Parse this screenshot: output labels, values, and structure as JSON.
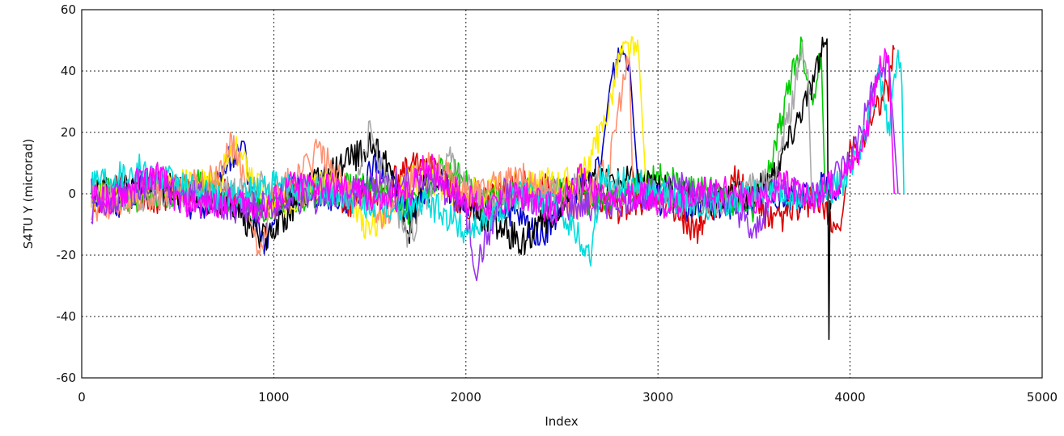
{
  "chart_data": {
    "type": "line",
    "title": "",
    "xlabel": "Index",
    "ylabel": "S4TU Y (microrad)",
    "xlim": [
      0,
      5000
    ],
    "ylim": [
      -60,
      60
    ],
    "x_ticks": [
      0,
      1000,
      2000,
      3000,
      4000,
      5000
    ],
    "x_tick_labels": [
      "0",
      "1000",
      "2000",
      "3000",
      "4000",
      "5000"
    ],
    "y_ticks": [
      -60,
      -40,
      -20,
      0,
      20,
      40,
      60
    ],
    "y_tick_labels": [
      "-60",
      "-40",
      "-20",
      "0",
      "20",
      "40",
      "60"
    ],
    "grid": true,
    "legend": "none",
    "series": [
      {
        "color": "#0000cc",
        "x": [
          50,
          200,
          350,
          500,
          650,
          750,
          850,
          900,
          950,
          1100,
          1250,
          1400,
          1550,
          1700,
          1850,
          2000,
          2200,
          2400,
          2550,
          2700,
          2750,
          2800,
          2850,
          2900,
          3000,
          3200,
          3400,
          3600,
          3750,
          3850,
          3950
        ],
        "y": [
          0,
          -3,
          4,
          -2,
          -5,
          10,
          13,
          -8,
          -16,
          3,
          0,
          -2,
          10,
          -6,
          5,
          -3,
          -5,
          -14,
          0,
          8,
          35,
          47,
          44,
          0,
          -2,
          -5,
          -3,
          0,
          -2,
          2,
          0
        ]
      },
      {
        "color": "#dd0000",
        "x": [
          50,
          200,
          400,
          600,
          800,
          950,
          1200,
          1400,
          1600,
          1800,
          2000,
          2300,
          2600,
          2800,
          3000,
          3200,
          3400,
          3600,
          3800,
          3950,
          4000,
          4050,
          4100,
          4200,
          4230
        ],
        "y": [
          -3,
          2,
          -2,
          3,
          -1,
          -4,
          2,
          -3,
          3,
          12,
          -5,
          3,
          0,
          -5,
          0,
          -12,
          5,
          -10,
          -2,
          -12,
          14,
          15,
          25,
          35,
          47
        ]
      },
      {
        "color": "#00cc00",
        "x": [
          50,
          300,
          600,
          900,
          1200,
          1500,
          1700,
          1900,
          2100,
          2400,
          2700,
          3000,
          3300,
          3500,
          3600,
          3700,
          3750,
          3800,
          3850,
          3870
        ],
        "y": [
          2,
          -2,
          3,
          -5,
          0,
          3,
          -5,
          10,
          -3,
          2,
          -3,
          5,
          0,
          -5,
          12,
          40,
          48,
          30,
          45,
          0
        ]
      },
      {
        "color": "#000000",
        "x": [
          50,
          400,
          800,
          950,
          1200,
          1500,
          1600,
          1700,
          1800,
          2000,
          2300,
          2600,
          2900,
          3200,
          3500,
          3600,
          3700,
          3750,
          3800,
          3850,
          3880,
          3890,
          3895,
          3900
        ],
        "y": [
          0,
          3,
          -5,
          -15,
          3,
          15,
          10,
          -14,
          8,
          -4,
          -16,
          3,
          5,
          -3,
          0,
          6,
          20,
          28,
          35,
          45,
          50,
          -47,
          0,
          -3
        ]
      },
      {
        "color": "#ffee00",
        "x": [
          50,
          400,
          700,
          800,
          1000,
          1300,
          1500,
          1700,
          2000,
          2300,
          2600,
          2700,
          2750,
          2800,
          2850,
          2900,
          2940
        ],
        "y": [
          -2,
          3,
          3,
          15,
          -5,
          6,
          -12,
          5,
          0,
          3,
          5,
          20,
          30,
          45,
          48,
          45,
          0
        ]
      },
      {
        "color": "#aaaaaa",
        "x": [
          50,
          500,
          1000,
          1400,
          1500,
          1550,
          1700,
          1900,
          2100,
          2500,
          2900,
          3300,
          3600,
          3700,
          3750,
          3780,
          3800
        ],
        "y": [
          0,
          -2,
          3,
          0,
          20,
          10,
          -15,
          12,
          -5,
          3,
          0,
          -4,
          5,
          30,
          48,
          40,
          0
        ]
      },
      {
        "color": "#ff9070",
        "x": [
          50,
          400,
          700,
          780,
          850,
          920,
          1000,
          1200,
          1220,
          1400,
          1600,
          1800,
          2000,
          2300,
          2600,
          2750,
          2800,
          2850,
          2870
        ],
        "y": [
          -5,
          0,
          5,
          17,
          5,
          -22,
          0,
          10,
          16,
          0,
          -8,
          12,
          0,
          5,
          -5,
          10,
          30,
          44,
          0
        ]
      },
      {
        "color": "#9933ee",
        "x": [
          50,
          400,
          800,
          1200,
          1600,
          1800,
          2000,
          2050,
          2200,
          2500,
          2800,
          3100,
          3400,
          3500,
          3600,
          3800,
          4000,
          4100,
          4200,
          4250
        ],
        "y": [
          -5,
          5,
          -5,
          -2,
          3,
          5,
          -5,
          -25,
          0,
          -5,
          -3,
          3,
          -4,
          -15,
          2,
          0,
          10,
          30,
          45,
          0
        ]
      },
      {
        "color": "#00dddd",
        "x": [
          50,
          300,
          700,
          1000,
          1300,
          1600,
          1800,
          2000,
          2300,
          2500,
          2650,
          2700,
          2900,
          3200,
          3500,
          3800,
          4000,
          4100,
          4150,
          4200,
          4250,
          4270,
          4280
        ],
        "y": [
          5,
          8,
          -2,
          3,
          0,
          -5,
          -3,
          -12,
          0,
          -5,
          -20,
          5,
          3,
          -5,
          0,
          -2,
          5,
          25,
          40,
          20,
          45,
          35,
          0
        ]
      },
      {
        "color": "#ff00ff",
        "x": [
          50,
          150,
          300,
          400,
          500,
          650,
          800,
          950,
          1100,
          1300,
          1450,
          1550,
          1700,
          1800,
          1900,
          2000,
          2150,
          2300,
          2450,
          2600,
          2750,
          2900,
          3050,
          3200,
          3350,
          3500,
          3650,
          3800,
          3950,
          4050,
          4100,
          4150,
          4200,
          4230
        ],
        "y": [
          0,
          -3,
          4,
          6,
          -2,
          -4,
          -2,
          -5,
          3,
          2,
          1,
          -3,
          0,
          10,
          3,
          -2,
          -4,
          0,
          -6,
          5,
          -3,
          0,
          -4,
          0,
          2,
          -3,
          3,
          -2,
          5,
          15,
          25,
          40,
          45,
          0
        ]
      }
    ]
  }
}
